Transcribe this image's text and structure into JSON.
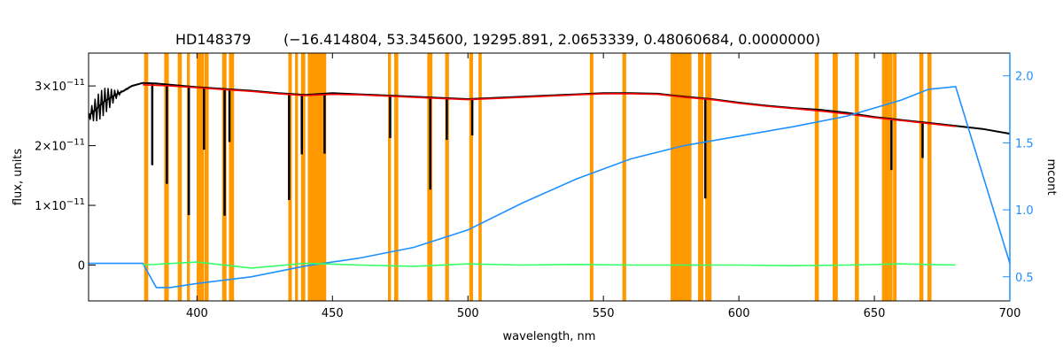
{
  "chart_data": {
    "type": "line",
    "title_star": "HD148379",
    "title_params": "(−16.414804, 53.345600, 19295.891, 2.0653339, 0.48060684, 0.0000000)",
    "xlabel": "wavelength, nm",
    "ylabel": "flux, units",
    "y2label": "mcont",
    "xlim": [
      360,
      700
    ],
    "ylim": [
      -6e-12,
      3.55e-11
    ],
    "y2lim": [
      0.32,
      2.17
    ],
    "x_ticks": [
      400,
      450,
      500,
      550,
      600,
      650,
      700
    ],
    "y_ticks": [
      {
        "value": 0,
        "mant": "0",
        "exp": ""
      },
      {
        "value": 1e-11,
        "mant": "1×10",
        "exp": "−11"
      },
      {
        "value": 2e-11,
        "mant": "2×10",
        "exp": "−11"
      },
      {
        "value": 3e-11,
        "mant": "3×10",
        "exp": "−11"
      }
    ],
    "y2_ticks": [
      0.5,
      1.0,
      1.5,
      2.0
    ],
    "y2_tick_labels": [
      "0.5",
      "1.0",
      "1.5",
      "2.0"
    ],
    "grid": false,
    "colors": {
      "observed": "#000000",
      "model": "#ff0000",
      "model_highlight": "#ffff00",
      "residual": "#33ff66",
      "continuum": "#1e90ff",
      "masked": "#ff9900",
      "right_axis": "#1e90ff"
    },
    "masked_regions": [
      [
        380.5,
        382.0
      ],
      [
        387.9,
        389.6
      ],
      [
        392.9,
        394.4
      ],
      [
        396.3,
        397.4
      ],
      [
        399.9,
        402.6
      ],
      [
        402.8,
        404.3
      ],
      [
        409.3,
        410.9
      ],
      [
        411.8,
        413.7
      ],
      [
        433.7,
        435.0
      ],
      [
        436.2,
        437.3
      ],
      [
        438.4,
        440.0
      ],
      [
        440.9,
        447.7
      ],
      [
        470.5,
        471.6
      ],
      [
        472.8,
        474.3
      ],
      [
        485.0,
        486.9
      ],
      [
        491.6,
        493.0
      ],
      [
        500.5,
        501.9
      ],
      [
        503.9,
        505.1
      ],
      [
        545.0,
        546.3
      ],
      [
        557.0,
        558.4
      ],
      [
        574.8,
        582.5
      ],
      [
        584.9,
        586.9
      ],
      [
        587.6,
        589.9
      ],
      [
        628.0,
        629.5
      ],
      [
        634.6,
        636.5
      ],
      [
        642.8,
        644.3
      ],
      [
        652.8,
        656.7
      ],
      [
        656.9,
        658.2
      ],
      [
        666.6,
        668.1
      ],
      [
        669.6,
        671.1
      ]
    ],
    "series": [
      {
        "name": "",
        "role": "observed",
        "x": [
          360,
          363,
          366,
          370,
          373,
          376,
          380,
          385,
          390,
          400,
          410,
          420,
          430,
          440,
          450,
          460,
          470,
          480,
          490,
          500,
          510,
          520,
          530,
          540,
          550,
          560,
          570,
          580,
          590,
          600,
          610,
          620,
          630,
          640,
          650,
          660,
          670,
          680,
          690,
          700
        ],
        "y": [
          2.5e-11,
          2.62e-11,
          2.75e-11,
          2.85e-11,
          2.92e-11,
          3e-11,
          3.05e-11,
          3.04e-11,
          3.02e-11,
          2.98e-11,
          2.95e-11,
          2.92e-11,
          2.88e-11,
          2.85e-11,
          2.88e-11,
          2.86e-11,
          2.84e-11,
          2.82e-11,
          2.8e-11,
          2.78e-11,
          2.8e-11,
          2.82e-11,
          2.84e-11,
          2.86e-11,
          2.88e-11,
          2.88e-11,
          2.87e-11,
          2.82e-11,
          2.78e-11,
          2.72e-11,
          2.67e-11,
          2.63e-11,
          2.6e-11,
          2.55e-11,
          2.48e-11,
          2.43e-11,
          2.38e-11,
          2.33e-11,
          2.28e-11,
          2.2e-11
        ]
      },
      {
        "name": "",
        "role": "model",
        "x": [
          380,
          390,
          400,
          410,
          420,
          430,
          440,
          450,
          460,
          470,
          480,
          490,
          500,
          510,
          520,
          530,
          540,
          550,
          560,
          570,
          580,
          590,
          600,
          610,
          620,
          630,
          640,
          650,
          660,
          670,
          680
        ],
        "y": [
          3.02e-11,
          3e-11,
          2.97e-11,
          2.94e-11,
          2.91e-11,
          2.87e-11,
          2.84e-11,
          2.86e-11,
          2.85e-11,
          2.83e-11,
          2.81e-11,
          2.79e-11,
          2.77e-11,
          2.79e-11,
          2.81e-11,
          2.83e-11,
          2.85e-11,
          2.87e-11,
          2.87e-11,
          2.86e-11,
          2.81e-11,
          2.77e-11,
          2.71e-11,
          2.66e-11,
          2.62e-11,
          2.58e-11,
          2.53e-11,
          2.47e-11,
          2.42e-11,
          2.37e-11,
          2.32e-11
        ]
      },
      {
        "name": "",
        "role": "continuum",
        "axis": "right",
        "x": [
          360,
          380,
          385,
          390,
          400,
          420,
          440,
          460,
          480,
          500,
          520,
          540,
          560,
          580,
          600,
          620,
          640,
          660,
          670,
          680,
          700
        ],
        "y": [
          0.6,
          0.6,
          0.42,
          0.42,
          0.45,
          0.5,
          0.58,
          0.64,
          0.72,
          0.85,
          1.05,
          1.23,
          1.38,
          1.48,
          1.55,
          1.62,
          1.7,
          1.82,
          1.9,
          1.92,
          0.6
        ]
      },
      {
        "name": "",
        "role": "residual",
        "x": [
          380,
          400,
          420,
          440,
          460,
          480,
          500,
          520,
          540,
          560,
          580,
          600,
          620,
          640,
          660,
          680
        ],
        "y": [
          0,
          5e-13,
          -5e-13,
          3e-13,
          0,
          -2e-13,
          2e-13,
          0,
          1e-13,
          0,
          0,
          0,
          -1e-13,
          0,
          2e-13,
          0
        ]
      }
    ],
    "absorption_lines": [
      {
        "x": 383.5,
        "depth": 0.45
      },
      {
        "x": 388.9,
        "depth": 0.55
      },
      {
        "x": 397.0,
        "depth": 0.72
      },
      {
        "x": 402.6,
        "depth": 0.35
      },
      {
        "x": 410.2,
        "depth": 0.72
      },
      {
        "x": 412.0,
        "depth": 0.3
      },
      {
        "x": 434.0,
        "depth": 0.62
      },
      {
        "x": 438.7,
        "depth": 0.35
      },
      {
        "x": 447.1,
        "depth": 0.35
      },
      {
        "x": 471.3,
        "depth": 0.25
      },
      {
        "x": 486.1,
        "depth": 0.55
      },
      {
        "x": 492.2,
        "depth": 0.25
      },
      {
        "x": 501.6,
        "depth": 0.22
      },
      {
        "x": 587.6,
        "depth": 0.6
      },
      {
        "x": 656.3,
        "depth": 0.35
      },
      {
        "x": 667.8,
        "depth": 0.25
      }
    ]
  }
}
